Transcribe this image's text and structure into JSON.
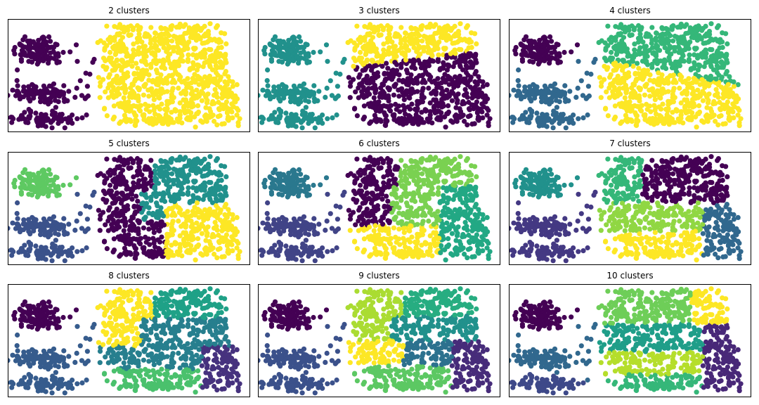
{
  "palette": {
    "2": [
      "#440154",
      "#fde725"
    ],
    "3": [
      "#440154",
      "#21918c",
      "#fde725"
    ],
    "4": [
      "#440154",
      "#31688e",
      "#35b779",
      "#fde725"
    ],
    "5": [
      "#440154",
      "#3b528b",
      "#21918c",
      "#5ec962",
      "#fde725"
    ],
    "6": [
      "#440154",
      "#414487",
      "#2a788e",
      "#22a884",
      "#7ad151",
      "#fde725"
    ],
    "7": [
      "#440154",
      "#443983",
      "#31688e",
      "#21918c",
      "#35b779",
      "#90d743",
      "#fde725"
    ],
    "8": [
      "#440154",
      "#46327e",
      "#365c8d",
      "#277f8e",
      "#1fa187",
      "#4ac16d",
      "#a0da39",
      "#fde725"
    ],
    "9": [
      "#440154",
      "#472c7a",
      "#3b518b",
      "#2c718e",
      "#21918c",
      "#27ad81",
      "#5cc863",
      "#aadc32",
      "#fde725"
    ],
    "10": [
      "#440154",
      "#482878",
      "#3e4989",
      "#31688e",
      "#26828e",
      "#1f9e89",
      "#35b779",
      "#6ece58",
      "#b5de2b",
      "#fde725"
    ]
  },
  "chart_data": [
    {
      "type": "scatter",
      "title": "2 clusters",
      "k": 2
    },
    {
      "type": "scatter",
      "title": "3 clusters",
      "k": 3
    },
    {
      "type": "scatter",
      "title": "4 clusters",
      "k": 4
    },
    {
      "type": "scatter",
      "title": "5 clusters",
      "k": 5
    },
    {
      "type": "scatter",
      "title": "6 clusters",
      "k": 6
    },
    {
      "type": "scatter",
      "title": "7 clusters",
      "k": 7
    },
    {
      "type": "scatter",
      "title": "8 clusters",
      "k": 8
    },
    {
      "type": "scatter",
      "title": "9 clusters",
      "k": 9
    },
    {
      "type": "scatter",
      "title": "10 clusters",
      "k": 10
    }
  ]
}
